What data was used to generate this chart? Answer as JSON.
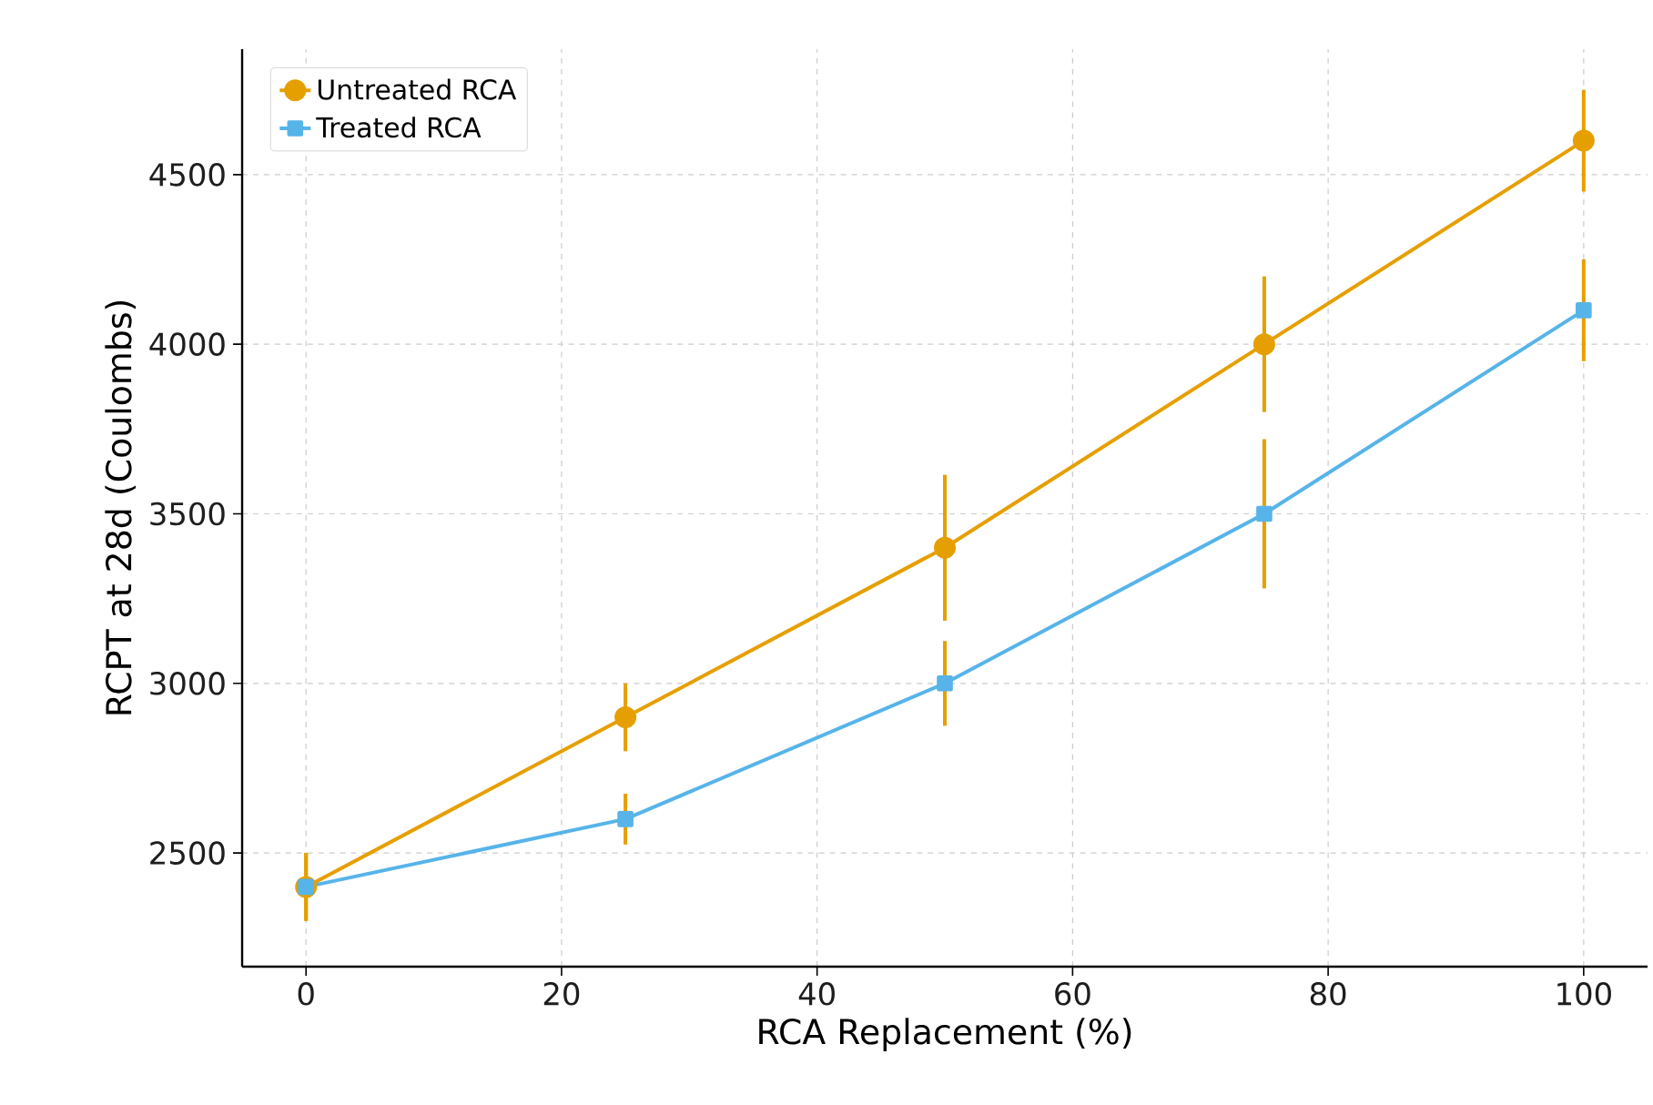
{
  "chart_data": {
    "type": "line",
    "xlabel": "RCA Replacement (%)",
    "ylabel": "RCPT at 28d (Coulombs)",
    "x": [
      0,
      25,
      50,
      75,
      100
    ],
    "series": [
      {
        "name": "Untreated RCA",
        "color": "#e69f00",
        "marker": "circle",
        "values": [
          2400,
          2900,
          3400,
          4000,
          4600
        ],
        "errors": [
          100,
          100,
          215,
          200,
          150
        ]
      },
      {
        "name": "Treated RCA",
        "color": "#56b4e9",
        "marker": "square",
        "values": [
          2400,
          2600,
          3000,
          3500,
          4100
        ],
        "errors": [
          100,
          75,
          125,
          220,
          150
        ]
      }
    ],
    "xlim": [
      -5,
      105
    ],
    "ylim": [
      2165,
      4870
    ],
    "xticks": [
      0,
      20,
      40,
      60,
      80,
      100
    ],
    "yticks": [
      2500,
      3000,
      3500,
      4000,
      4500
    ],
    "grid": true,
    "legend": "top left",
    "line_style": "solid"
  }
}
